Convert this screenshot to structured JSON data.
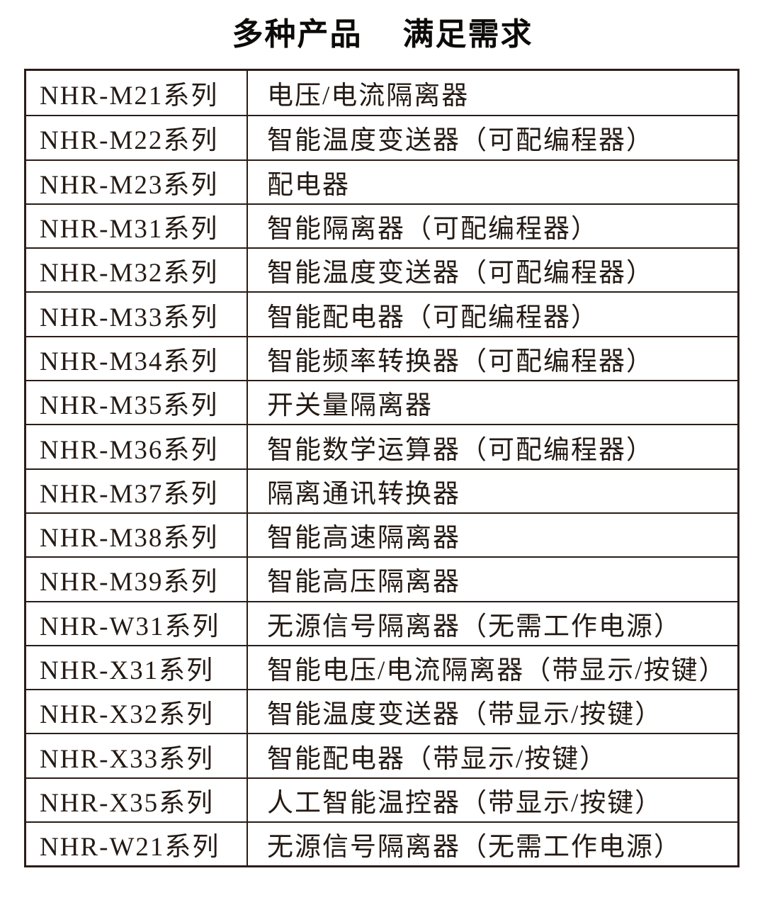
{
  "title": {
    "left": "多种产品",
    "right": "满足需求"
  },
  "colors": {
    "background": "#ffffff",
    "border": "#2a1d18",
    "table_text": "#241a14",
    "title_text": "#0d0b0a"
  },
  "table": {
    "rows": [
      {
        "series": "NHR-M21系列",
        "description": "电压/电流隔离器"
      },
      {
        "series": "NHR-M22系列",
        "description": "智能温度变送器（可配编程器）"
      },
      {
        "series": "NHR-M23系列",
        "description": "配电器"
      },
      {
        "series": "NHR-M31系列",
        "description": "智能隔离器（可配编程器）"
      },
      {
        "series": "NHR-M32系列",
        "description": "智能温度变送器（可配编程器）"
      },
      {
        "series": "NHR-M33系列",
        "description": "智能配电器（可配编程器）"
      },
      {
        "series": "NHR-M34系列",
        "description": "智能频率转换器（可配编程器）"
      },
      {
        "series": "NHR-M35系列",
        "description": "开关量隔离器"
      },
      {
        "series": "NHR-M36系列",
        "description": "智能数学运算器（可配编程器）"
      },
      {
        "series": "NHR-M37系列",
        "description": "隔离通讯转换器"
      },
      {
        "series": "NHR-M38系列",
        "description": "智能高速隔离器"
      },
      {
        "series": "NHR-M39系列",
        "description": "智能高压隔离器"
      },
      {
        "series": "NHR-W31系列",
        "description": "无源信号隔离器（无需工作电源）"
      },
      {
        "series": "NHR-X31系列",
        "description": "智能电压/电流隔离器（带显示/按键）"
      },
      {
        "series": "NHR-X32系列",
        "description": "智能温度变送器（带显示/按键）"
      },
      {
        "series": "NHR-X33系列",
        "description": "智能配电器（带显示/按键）"
      },
      {
        "series": "NHR-X35系列",
        "description": "人工智能温控器（带显示/按键）"
      },
      {
        "series": "NHR-W21系列",
        "description": "无源信号隔离器（无需工作电源）"
      }
    ]
  }
}
